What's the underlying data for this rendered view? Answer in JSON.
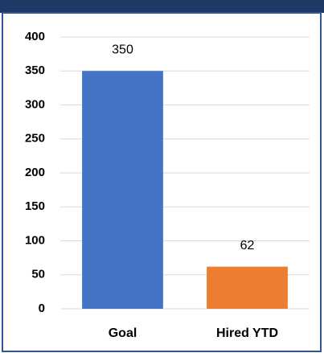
{
  "chart_data": {
    "type": "bar",
    "categories": [
      "Goal",
      "Hired YTD"
    ],
    "values": [
      350,
      62
    ],
    "colors": [
      "#4472c4",
      "#ed7d31"
    ],
    "ylim": [
      0,
      400
    ],
    "yticks": [
      0,
      50,
      100,
      150,
      200,
      250,
      300,
      350,
      400
    ],
    "grid": true
  }
}
